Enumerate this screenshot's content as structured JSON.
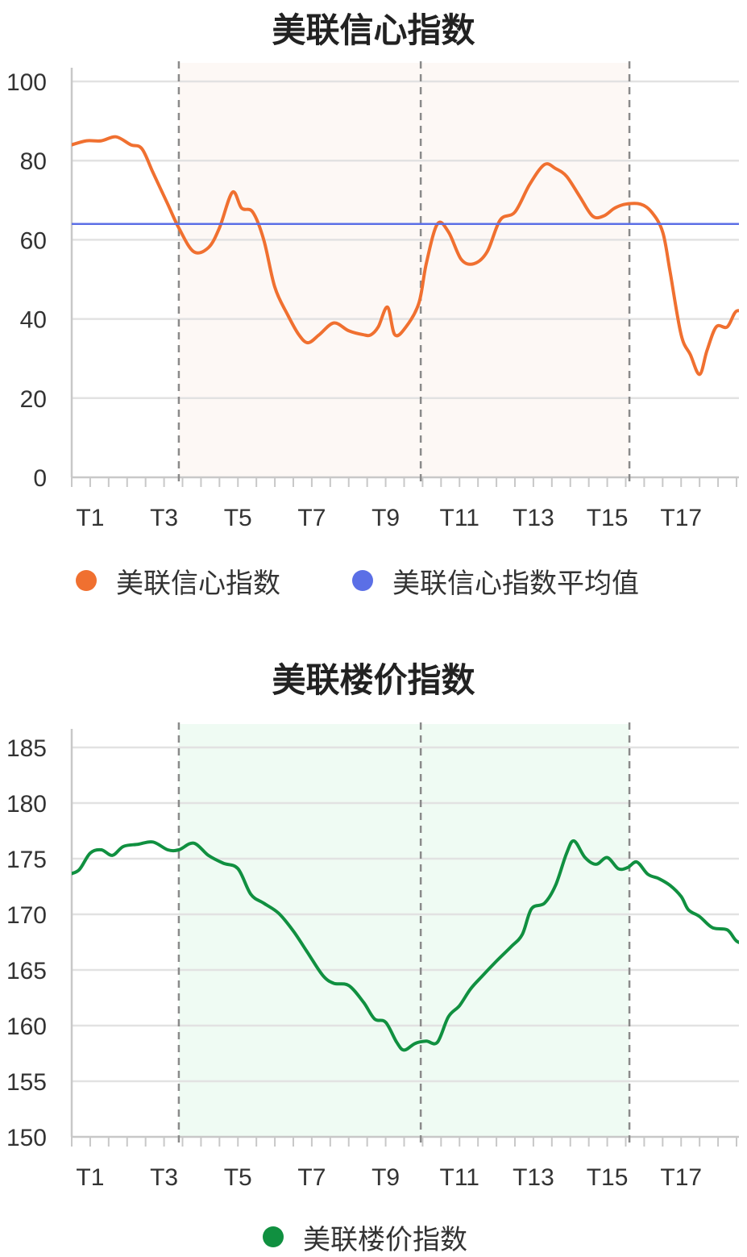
{
  "chart_data": [
    {
      "type": "line",
      "title": "美联信心指数",
      "xlabel": "",
      "ylabel": "",
      "x_ticks": [
        "T1",
        "T3",
        "T5",
        "T7",
        "T9",
        "T11",
        "T13",
        "T15",
        "T17"
      ],
      "x_range": [
        0,
        18
      ],
      "ylim": [
        0,
        100
      ],
      "y_ticks": [
        0,
        20,
        40,
        60,
        80,
        100
      ],
      "grid": true,
      "legend_position": "bottom",
      "shaded_ranges": [
        [
          2.9,
          15.1
        ]
      ],
      "vertical_dashed_lines": [
        2.9,
        9.45,
        15.1
      ],
      "series": [
        {
          "name": "美联信心指数",
          "color": "#F07030",
          "points": [
            [
              0.0,
              84
            ],
            [
              0.4,
              85
            ],
            [
              0.8,
              85
            ],
            [
              1.2,
              86
            ],
            [
              1.6,
              84
            ],
            [
              1.9,
              83
            ],
            [
              2.2,
              77
            ],
            [
              2.6,
              69
            ],
            [
              2.9,
              63
            ],
            [
              3.3,
              57
            ],
            [
              3.7,
              58
            ],
            [
              4.0,
              63
            ],
            [
              4.35,
              72
            ],
            [
              4.6,
              68
            ],
            [
              4.9,
              67
            ],
            [
              5.2,
              60
            ],
            [
              5.5,
              48
            ],
            [
              5.85,
              41
            ],
            [
              6.15,
              36
            ],
            [
              6.4,
              34
            ],
            [
              6.7,
              36
            ],
            [
              7.1,
              39
            ],
            [
              7.5,
              37
            ],
            [
              7.9,
              36
            ],
            [
              8.1,
              36
            ],
            [
              8.3,
              38
            ],
            [
              8.55,
              43
            ],
            [
              8.75,
              36
            ],
            [
              9.05,
              38
            ],
            [
              9.4,
              44
            ],
            [
              9.6,
              54
            ],
            [
              9.9,
              64
            ],
            [
              10.2,
              62
            ],
            [
              10.55,
              55
            ],
            [
              10.9,
              54
            ],
            [
              11.25,
              57
            ],
            [
              11.6,
              65
            ],
            [
              12.0,
              67
            ],
            [
              12.4,
              74
            ],
            [
              12.8,
              79
            ],
            [
              13.1,
              78
            ],
            [
              13.4,
              76
            ],
            [
              13.75,
              71
            ],
            [
              14.1,
              66
            ],
            [
              14.4,
              66
            ],
            [
              14.7,
              68
            ],
            [
              15.0,
              69
            ],
            [
              15.4,
              69
            ],
            [
              15.7,
              67
            ],
            [
              16.0,
              62
            ],
            [
              16.2,
              52
            ],
            [
              16.5,
              36
            ],
            [
              16.75,
              31
            ],
            [
              17.0,
              26
            ],
            [
              17.2,
              32
            ],
            [
              17.45,
              38
            ],
            [
              17.75,
              38
            ],
            [
              18.0,
              42
            ],
            [
              18.3,
              41
            ]
          ]
        },
        {
          "name": "美联信心指数平均值",
          "color": "#5B6FE6",
          "constant": 64
        }
      ]
    },
    {
      "type": "line",
      "title": "美联楼价指数",
      "xlabel": "",
      "ylabel": "",
      "x_ticks": [
        "T1",
        "T3",
        "T5",
        "T7",
        "T9",
        "T11",
        "T13",
        "T15",
        "T17"
      ],
      "x_range": [
        0,
        18
      ],
      "ylim": [
        150,
        185
      ],
      "y_ticks": [
        150,
        155,
        160,
        165,
        170,
        175,
        180,
        185
      ],
      "grid": true,
      "legend_position": "bottom",
      "shaded_ranges": [
        [
          2.9,
          15.1
        ]
      ],
      "vertical_dashed_lines": [
        2.9,
        9.45,
        15.1
      ],
      "series": [
        {
          "name": "美联楼价指数",
          "color": "#109040",
          "points": [
            [
              -0.4,
              172.5
            ],
            [
              -0.1,
              173.5
            ],
            [
              0.2,
              174
            ],
            [
              0.5,
              175.5
            ],
            [
              0.8,
              175.8
            ],
            [
              1.1,
              175.3
            ],
            [
              1.4,
              176.1
            ],
            [
              1.8,
              176.3
            ],
            [
              2.2,
              176.5
            ],
            [
              2.6,
              175.8
            ],
            [
              2.9,
              175.8
            ],
            [
              3.3,
              176.4
            ],
            [
              3.7,
              175.3
            ],
            [
              4.1,
              174.6
            ],
            [
              4.5,
              174.1
            ],
            [
              4.85,
              171.8
            ],
            [
              5.2,
              171
            ],
            [
              5.6,
              170.1
            ],
            [
              6.0,
              168.5
            ],
            [
              6.4,
              166.5
            ],
            [
              6.8,
              164.5
            ],
            [
              7.1,
              163.8
            ],
            [
              7.5,
              163.6
            ],
            [
              7.9,
              162.1
            ],
            [
              8.2,
              160.6
            ],
            [
              8.5,
              160.3
            ],
            [
              8.8,
              158.5
            ],
            [
              9.0,
              157.8
            ],
            [
              9.3,
              158.4
            ],
            [
              9.6,
              158.6
            ],
            [
              9.9,
              158.5
            ],
            [
              10.2,
              160.8
            ],
            [
              10.5,
              161.8
            ],
            [
              10.8,
              163.3
            ],
            [
              11.1,
              164.4
            ],
            [
              11.5,
              165.8
            ],
            [
              11.9,
              167.1
            ],
            [
              12.2,
              168.2
            ],
            [
              12.45,
              170.5
            ],
            [
              12.8,
              171
            ],
            [
              13.1,
              172.6
            ],
            [
              13.4,
              175.5
            ],
            [
              13.6,
              176.6
            ],
            [
              13.9,
              175.1
            ],
            [
              14.2,
              174.5
            ],
            [
              14.5,
              175.1
            ],
            [
              14.8,
              174.1
            ],
            [
              15.05,
              174.2
            ],
            [
              15.3,
              174.7
            ],
            [
              15.6,
              173.6
            ],
            [
              15.9,
              173.2
            ],
            [
              16.2,
              172.6
            ],
            [
              16.5,
              171.6
            ],
            [
              16.7,
              170.4
            ],
            [
              17.0,
              169.8
            ],
            [
              17.35,
              168.8
            ],
            [
              17.75,
              168.6
            ],
            [
              18.0,
              167.6
            ],
            [
              18.3,
              167.2
            ]
          ]
        }
      ]
    }
  ]
}
